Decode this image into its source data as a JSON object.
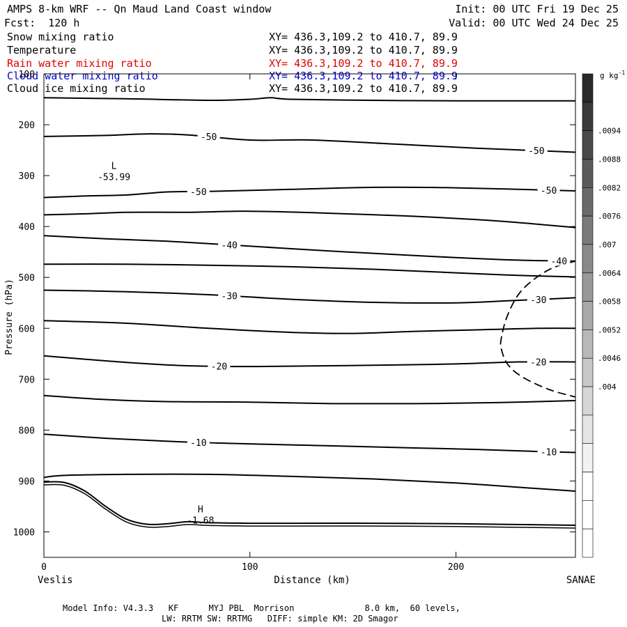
{
  "header": {
    "title": "AMPS 8-km WRF -- Qn Maud Land Coast window",
    "init": "Init: 00 UTC Fri 19 Dec 25",
    "fcst": "Fcst:  120 h",
    "valid": "Valid: 00 UTC Wed 24 Dec 25",
    "fields": [
      {
        "name": "Snow mixing ratio",
        "xy": "XY= 436.3,109.2 to 410.7, 89.9",
        "color": "#000000"
      },
      {
        "name": "Temperature",
        "xy": "XY= 436.3,109.2 to 410.7, 89.9",
        "color": "#000000"
      },
      {
        "name": "Rain water mixing ratio",
        "xy": "XY= 436.3,109.2 to 410.7, 89.9",
        "color": "#e00000"
      },
      {
        "name": "Cloud water mixing ratio",
        "xy": "XY= 436.3,109.2 to 410.7, 89.9",
        "color": "#0000cc"
      },
      {
        "name": "Cloud ice mixing ratio",
        "xy": "XY= 436.3,109.2 to 410.7, 89.9",
        "color": "#000000"
      }
    ]
  },
  "footer": {
    "line1": "Model Info: V4.3.3   KF      MYJ PBL  Morrison              8.0 km,  60 levels,",
    "line2": "LW: RRTM SW: RRTMG   DIFF: simple KM: 2D Smagor"
  },
  "chart_data": {
    "type": "line",
    "xlabel": "Distance (km)",
    "ylabel": "Pressure (hPa)",
    "xlim": [
      0,
      258
    ],
    "ylim": [
      1050,
      100
    ],
    "x_ticks": [
      0,
      100,
      200
    ],
    "y_ticks": [
      100,
      200,
      300,
      400,
      500,
      600,
      700,
      800,
      900,
      1000
    ],
    "x_endpoints": {
      "left": "Veslis",
      "right": "SANAE"
    },
    "temperature_contours": [
      {
        "x": [
          0,
          40,
          80,
          100,
          110,
          120,
          160,
          200,
          258
        ],
        "p": [
          147,
          149,
          152,
          150,
          147,
          150,
          152,
          153,
          153
        ],
        "label": ""
      },
      {
        "x": [
          0,
          30,
          50,
          70,
          100,
          130,
          170,
          210,
          258
        ],
        "p": [
          223,
          221,
          218,
          220,
          230,
          230,
          238,
          246,
          254
        ],
        "label": "-50",
        "label_x": [
          80,
          239
        ]
      },
      {
        "x": [
          0,
          20,
          40,
          60,
          80,
          120,
          160,
          200,
          258
        ],
        "p": [
          343,
          340,
          338,
          332,
          331,
          327,
          323,
          324,
          330
        ],
        "label": "-50",
        "label_x": [
          75,
          245
        ]
      },
      {
        "x": [
          0,
          20,
          40,
          70,
          100,
          140,
          180,
          220,
          258
        ],
        "p": [
          377,
          375,
          372,
          372,
          370,
          374,
          380,
          389,
          402
        ],
        "label": ""
      },
      {
        "x": [
          0,
          30,
          60,
          90,
          130,
          170,
          200,
          230,
          258
        ],
        "p": [
          418,
          424,
          429,
          436,
          446,
          455,
          461,
          466,
          468
        ],
        "label": "-40",
        "label_x": [
          90,
          250
        ]
      },
      {
        "x": [
          0,
          40,
          80,
          120,
          160,
          200,
          230,
          258
        ],
        "p": [
          474,
          474,
          476,
          479,
          484,
          491,
          496,
          499
        ],
        "label": ""
      },
      {
        "x": [
          0,
          40,
          80,
          120,
          160,
          200,
          225,
          258
        ],
        "p": [
          525,
          528,
          534,
          543,
          549,
          550,
          546,
          540
        ],
        "label": "-30",
        "label_x": [
          90,
          240
        ]
      },
      {
        "x": [
          0,
          40,
          80,
          120,
          150,
          180,
          210,
          240,
          258
        ],
        "p": [
          585,
          590,
          600,
          608,
          610,
          606,
          603,
          600,
          600
        ],
        "label": ""
      },
      {
        "x": [
          0,
          30,
          60,
          90,
          130,
          170,
          200,
          230,
          258
        ],
        "p": [
          654,
          664,
          672,
          675,
          674,
          672,
          670,
          666,
          666
        ],
        "label": "-20",
        "label_x": [
          85,
          240
        ]
      },
      {
        "x": [
          0,
          30,
          60,
          100,
          140,
          180,
          220,
          258
        ],
        "p": [
          732,
          740,
          744,
          745,
          748,
          748,
          746,
          742
        ],
        "label": ""
      },
      {
        "x": [
          0,
          30,
          60,
          90,
          130,
          170,
          210,
          240,
          258
        ],
        "p": [
          808,
          816,
          822,
          826,
          830,
          834,
          838,
          842,
          844
        ],
        "label": "-10",
        "label_x": [
          75,
          245
        ]
      },
      {
        "x": [
          0,
          10,
          40,
          80,
          120,
          160,
          200,
          240,
          258
        ],
        "p": [
          893,
          889,
          887,
          887,
          891,
          896,
          904,
          915,
          920
        ],
        "label": ""
      },
      {
        "x": [
          0,
          10,
          20,
          30,
          40,
          50,
          60,
          70,
          80,
          100,
          120,
          160,
          200,
          258
        ],
        "p": [
          902,
          903,
          920,
          950,
          975,
          985,
          984,
          980,
          982,
          983,
          983,
          983,
          984,
          987
        ],
        "label": ""
      }
    ],
    "extremes": [
      {
        "type": "L",
        "value": "-53.99",
        "x": 34,
        "p": 295
      },
      {
        "type": "H",
        "value": "-1.68",
        "x": 76,
        "p": 970
      }
    ],
    "snow_contour_dashed": {
      "x": [
        258,
        245,
        232,
        225,
        222,
        222,
        225,
        232,
        245,
        258
      ],
      "p": [
        468,
        485,
        525,
        575,
        620,
        640,
        670,
        695,
        720,
        735
      ]
    },
    "colorbar": {
      "unit": "g kg^-1",
      "labels": [
        ".0094",
        ".0088",
        ".0082",
        ".0076",
        ".007",
        ".0064",
        ".0058",
        ".0052",
        ".0046",
        ".004"
      ],
      "colors": [
        "#2a2a2a",
        "#3a3a3a",
        "#4a4a4a",
        "#5a5a5a",
        "#6a6a6a",
        "#7a7a7a",
        "#8a8a8a",
        "#999999",
        "#a8a8a8",
        "#b8b8b8",
        "#c8c8c8",
        "#d6d6d6",
        "#e4e4e4",
        "#f2f2f2",
        "#ffffff",
        "#ffffff",
        "#ffffff"
      ]
    }
  }
}
